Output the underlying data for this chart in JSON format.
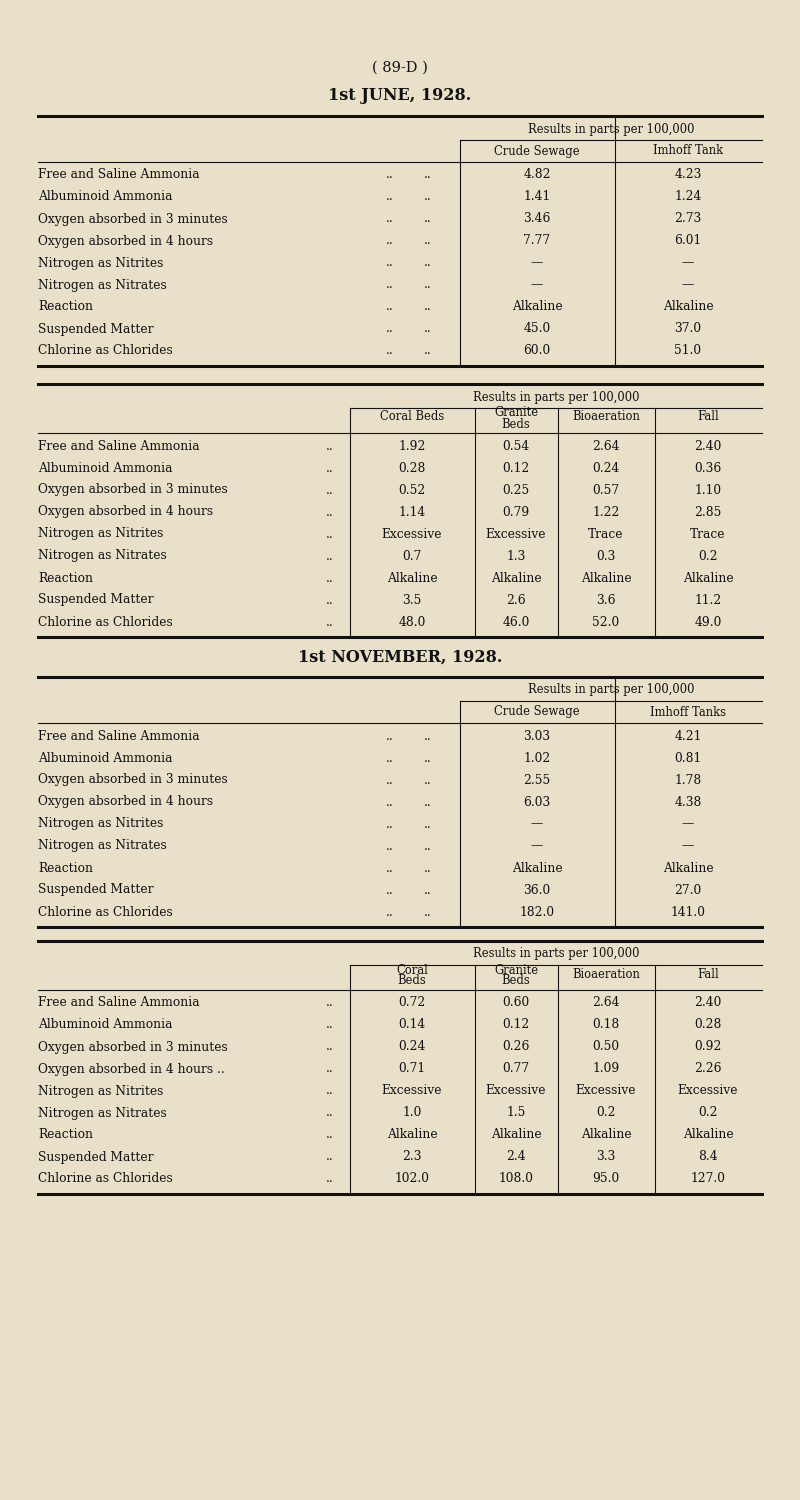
{
  "bg_color": "#e8e0c8",
  "text_color": "#111111",
  "page_title": "( 89-D )",
  "section1_title": "1st JUNE, 1928.",
  "section1_header": "Results in parts per 100,000",
  "section1_col1": "Crude Sewage",
  "section1_col2": "Imhoff Tank",
  "section1_rows": [
    [
      "Free and Saline Ammonia",
      "4.82",
      "4.23"
    ],
    [
      "Albuminoid Ammonia",
      "1.41",
      "1.24"
    ],
    [
      "Oxygen absorbed in 3 minutes",
      "3.46",
      "2.73"
    ],
    [
      "Oxygen absorbed in 4 hours",
      "7.77",
      "6.01"
    ],
    [
      "Nitrogen as Nitrites",
      "—",
      "—"
    ],
    [
      "Nitrogen as Nitrates",
      "—",
      "—"
    ],
    [
      "Reaction",
      "Alkaline",
      "Alkaline"
    ],
    [
      "Suspended Matter",
      "45.0",
      "37.0"
    ],
    [
      "Chlorine as Chlorides",
      "60.0",
      "51.0"
    ]
  ],
  "section2_header": "Results in parts per 100,000",
  "section2_col1": "Coral Beds",
  "section2_col2": "Granite\nBeds",
  "section2_col3": "Bioaeration",
  "section2_col4": "Fall",
  "section2_rows": [
    [
      "Free and Saline Ammonia",
      "1.92",
      "0.54",
      "2.64",
      "2.40"
    ],
    [
      "Albuminoid Ammonia",
      "0.28",
      "0.12",
      "0.24",
      "0.36"
    ],
    [
      "Oxygen absorbed in 3 minutes",
      "0.52",
      "0.25",
      "0.57",
      "1.10"
    ],
    [
      "Oxygen absorbed in 4 hours",
      "1.14",
      "0.79",
      "1.22",
      "2.85"
    ],
    [
      "Nitrogen as Nitrites",
      "Excessive",
      "Excessive",
      "Trace",
      "Trace"
    ],
    [
      "Nitrogen as Nitrates",
      "0.7",
      "1.3",
      "0.3",
      "0.2"
    ],
    [
      "Reaction",
      "Alkaline",
      "Alkaline",
      "Alkaline",
      "Alkaline"
    ],
    [
      "Suspended Matter",
      "3.5",
      "2.6",
      "3.6",
      "11.2"
    ],
    [
      "Chlorine as Chlorides",
      "48.0",
      "46.0",
      "52.0",
      "49.0"
    ]
  ],
  "section3_title": "1st NOVEMBER, 1928.",
  "section3_header": "Results in parts per 100,000",
  "section3_col1": "Crude Sewage",
  "section3_col2": "Imhoff Tanks",
  "section3_rows": [
    [
      "Free and Saline Ammonia",
      "3.03",
      "4.21"
    ],
    [
      "Albuminoid Ammonia",
      "1.02",
      "0.81"
    ],
    [
      "Oxygen absorbed in 3 minutes",
      "2.55",
      "1.78"
    ],
    [
      "Oxygen absorbed in 4 hours",
      "6.03",
      "4.38"
    ],
    [
      "Nitrogen as Nitrites",
      "—",
      "—"
    ],
    [
      "Nitrogen as Nitrates",
      "—",
      "—"
    ],
    [
      "Reaction",
      "Alkaline",
      "Alkaline"
    ],
    [
      "Suspended Matter",
      "36.0",
      "27.0"
    ],
    [
      "Chlorine as Chlorides",
      "182.0",
      "141.0"
    ]
  ],
  "section4_header": "Results in parts per 100,000",
  "section4_col1": "Coral\nBeds",
  "section4_col2": "Granite\nBeds",
  "section4_col3": "Bioaeration",
  "section4_col4": "Fall",
  "section4_rows": [
    [
      "Free and Saline Ammonia",
      "0.72",
      "0.60",
      "2.64",
      "2.40"
    ],
    [
      "Albuminoid Ammonia",
      "0.14",
      "0.12",
      "0.18",
      "0.28"
    ],
    [
      "Oxygen absorbed in 3 minutes",
      "0.24",
      "0.26",
      "0.50",
      "0.92"
    ],
    [
      "Oxygen absorbed in 4 hours ..",
      "0.71",
      "0.77",
      "1.09",
      "2.26"
    ],
    [
      "Nitrogen as Nitrites",
      "Excessive",
      "Excessive",
      "Excessive",
      "Excessive"
    ],
    [
      "Nitrogen as Nitrates",
      "1.0",
      "1.5",
      "0.2",
      "0.2"
    ],
    [
      "Reaction",
      "Alkaline",
      "Alkaline",
      "Alkaline",
      "Alkaline"
    ],
    [
      "Suspended Matter",
      "2.3",
      "2.4",
      "3.3",
      "8.4"
    ],
    [
      "Chlorine as Chlorides",
      "102.0",
      "108.0",
      "95.0",
      "127.0"
    ]
  ]
}
